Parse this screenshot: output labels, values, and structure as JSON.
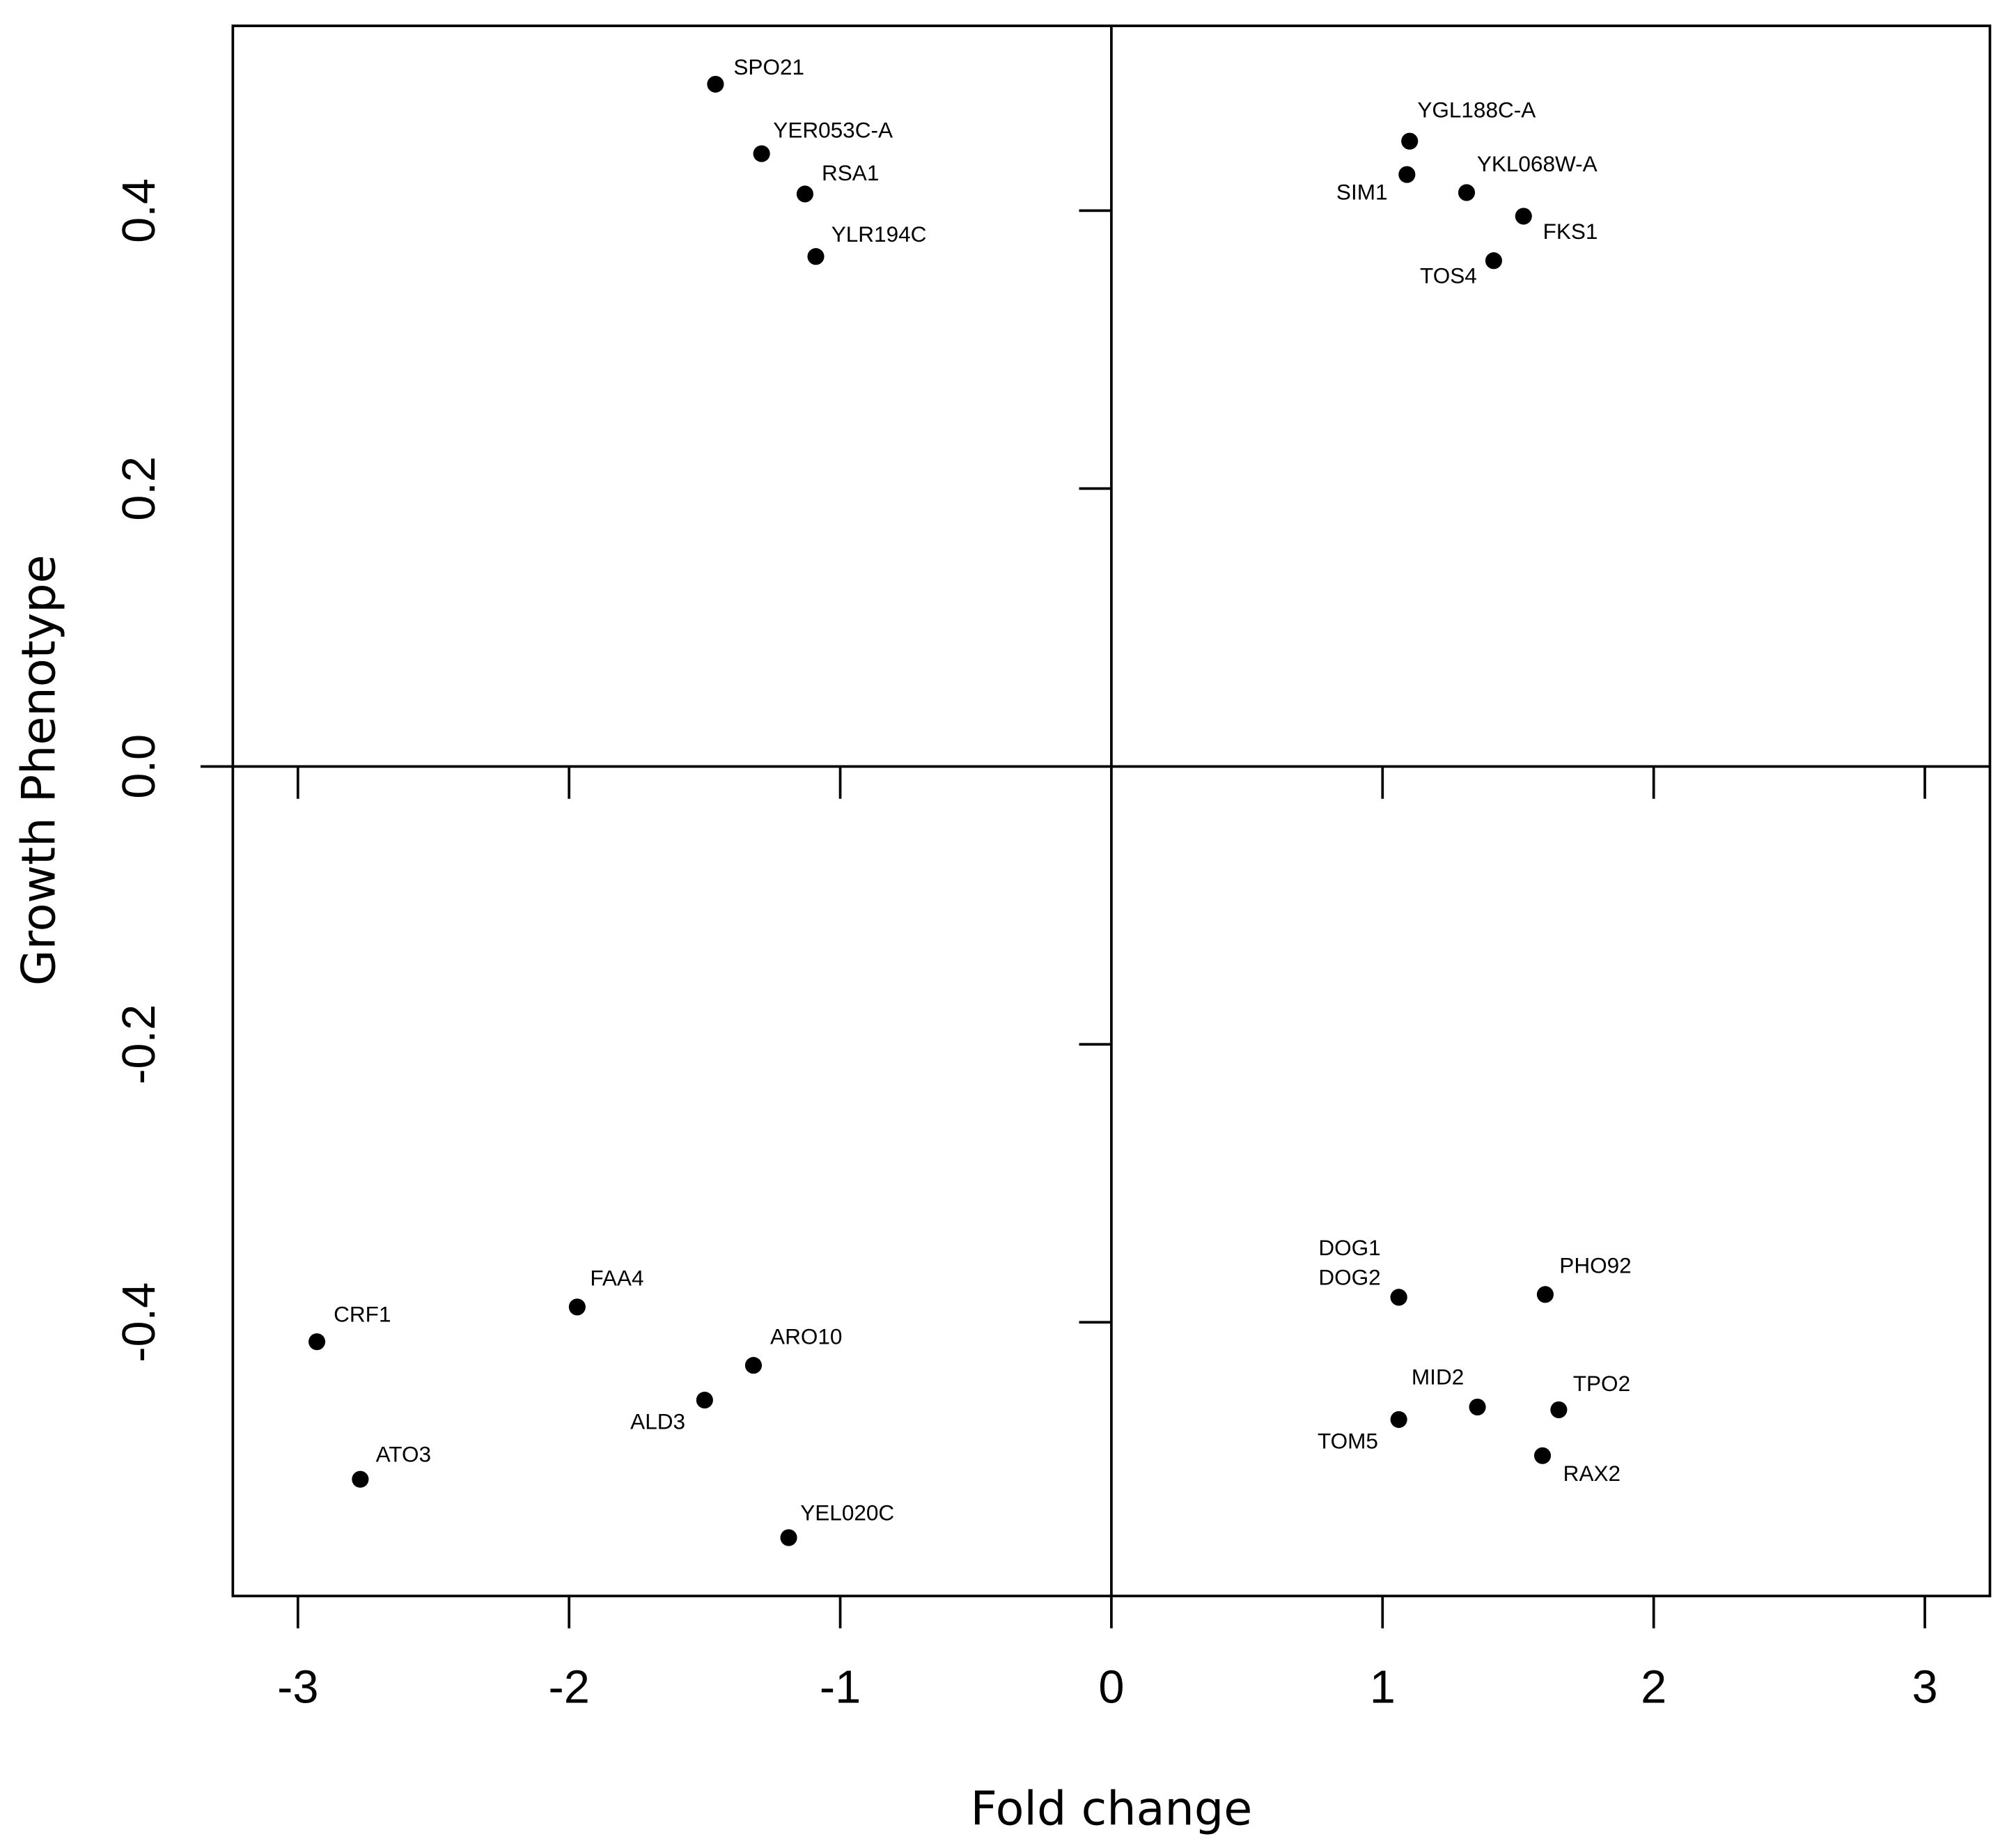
{
  "chart_data": {
    "type": "scatter",
    "x_label": "Fold change",
    "y_label": "Growth Phenotype",
    "labels": [
      "SPO21",
      "YER053C-A",
      "RSA1",
      "YLR194C",
      "YGL188C-A",
      "SIM1",
      "YKL068W-A",
      "FKS1",
      "TOS4",
      "CRF1",
      "ATO3",
      "FAA4",
      "ARO10",
      "ALD3",
      "YEL020C",
      "DOG1",
      "DOG2",
      "PHO92",
      "MID2",
      "TPO2",
      "TOM5",
      "RAX2"
    ],
    "x": [
      -1.46,
      -1.29,
      -1.13,
      -1.09,
      1.1,
      1.09,
      1.31,
      1.52,
      1.41,
      -2.93,
      -2.77,
      -1.97,
      -1.32,
      -1.5,
      -1.19,
      1.06,
      1.06,
      1.6,
      1.35,
      1.65,
      1.06,
      1.59
    ],
    "values": [
      0.491,
      0.441,
      0.412,
      0.367,
      0.45,
      0.426,
      0.413,
      0.396,
      0.364,
      -0.414,
      -0.513,
      -0.389,
      -0.431,
      -0.456,
      -0.555,
      -0.382,
      -0.382,
      -0.38,
      -0.461,
      -0.463,
      -0.47,
      -0.496
    ],
    "color": "#000000",
    "xlim": [
      -3.24,
      3.24
    ],
    "ylim": [
      -0.597,
      0.533
    ],
    "xticks": [
      -3,
      -2,
      -1,
      0,
      1,
      2,
      3
    ],
    "yticks": [
      -0.4,
      -0.2,
      {
        "value": 0,
        "label": "0.0"
      },
      0.2,
      0.4
    ]
  }
}
